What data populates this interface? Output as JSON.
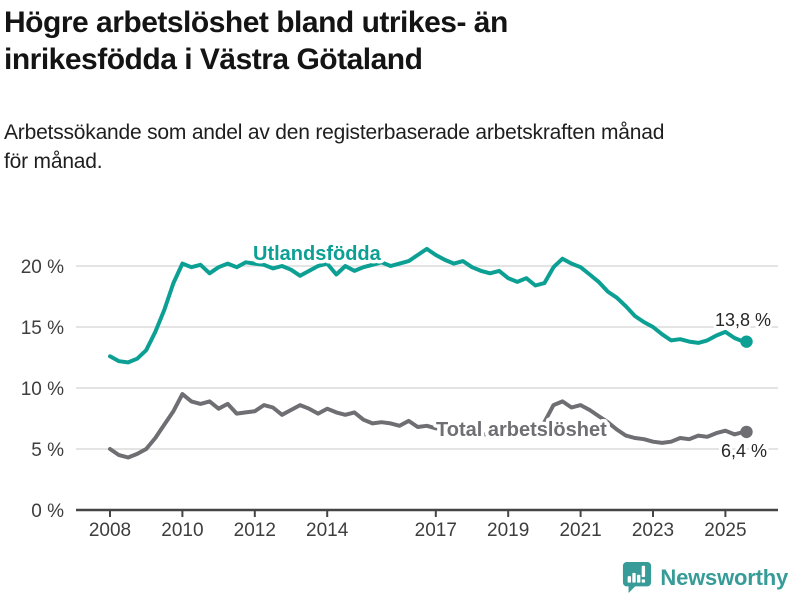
{
  "header": {
    "title": "Högre arbetslöshet bland utrikes- än\ninrikesfödda i Västra Götaland",
    "subtitle": "Arbetssökande som andel av den registerbaserade arbetskraften månad\nför månad."
  },
  "chart_data": {
    "type": "line",
    "title": "Högre arbetslöshet bland utrikes- än inrikesfödda i Västra Götaland",
    "subtitle": "Arbetssökande som andel av den registerbaserade arbetskraften månad för månad.",
    "unit": "%",
    "ylim": [
      0,
      22
    ],
    "grid": true,
    "legend_position": "inline-labels",
    "x": [
      2008,
      2008.25,
      2008.5,
      2008.75,
      2009,
      2009.25,
      2009.5,
      2009.75,
      2010,
      2010.25,
      2010.5,
      2010.75,
      2011,
      2011.25,
      2011.5,
      2011.75,
      2012,
      2012.25,
      2012.5,
      2012.75,
      2013,
      2013.25,
      2013.5,
      2013.75,
      2014,
      2014.25,
      2014.5,
      2014.75,
      2015,
      2015.25,
      2015.5,
      2015.75,
      2016,
      2016.25,
      2016.5,
      2016.75,
      2017,
      2017.25,
      2017.5,
      2017.75,
      2018,
      2018.25,
      2018.5,
      2018.75,
      2019,
      2019.25,
      2019.5,
      2019.75,
      2020,
      2020.25,
      2020.5,
      2020.75,
      2021,
      2021.25,
      2021.5,
      2021.75,
      2022,
      2022.25,
      2022.5,
      2022.75,
      2023,
      2023.25,
      2023.5,
      2023.75,
      2024,
      2024.25,
      2024.5,
      2024.75,
      2025,
      2025.25,
      2025.5
    ],
    "series": [
      {
        "name": "Utlandsfödda",
        "color": "#0CA094",
        "end_label": "13,8 %",
        "last_value": 13.8,
        "values": [
          12.6,
          12.2,
          12.1,
          12.4,
          13.1,
          14.6,
          16.4,
          18.6,
          20.2,
          19.9,
          20.1,
          19.4,
          19.9,
          20.2,
          19.9,
          20.3,
          20.2,
          20.1,
          19.8,
          20.0,
          19.7,
          19.2,
          19.6,
          20.0,
          20.2,
          19.3,
          20.0,
          19.6,
          19.9,
          20.1,
          20.3,
          20.0,
          20.2,
          20.4,
          20.9,
          21.4,
          20.9,
          20.5,
          20.2,
          20.4,
          19.9,
          19.6,
          19.4,
          19.6,
          19.0,
          18.7,
          19.0,
          18.4,
          18.6,
          19.9,
          20.6,
          20.2,
          19.9,
          19.3,
          18.7,
          17.9,
          17.4,
          16.7,
          15.9,
          15.4,
          15.0,
          14.4,
          13.9,
          14.0,
          13.8,
          13.7,
          13.9,
          14.3,
          14.6,
          14.1,
          13.8
        ]
      },
      {
        "name": "Total arbetslöshet",
        "color": "#6E6E73",
        "end_label": "6,4 %",
        "last_value": 6.4,
        "values": [
          5.0,
          4.5,
          4.3,
          4.6,
          5.0,
          5.9,
          7.0,
          8.1,
          9.5,
          8.9,
          8.7,
          8.9,
          8.3,
          8.7,
          7.9,
          8.0,
          8.1,
          8.6,
          8.4,
          7.8,
          8.2,
          8.6,
          8.3,
          7.9,
          8.3,
          8.0,
          7.8,
          8.0,
          7.4,
          7.1,
          7.2,
          7.1,
          6.9,
          7.3,
          6.8,
          6.9,
          6.7,
          6.6,
          6.5,
          6.4,
          6.3,
          6.2,
          6.2,
          6.1,
          6.2,
          6.3,
          6.4,
          6.6,
          7.2,
          8.6,
          8.9,
          8.4,
          8.6,
          8.2,
          7.7,
          7.2,
          6.6,
          6.1,
          5.9,
          5.8,
          5.6,
          5.5,
          5.6,
          5.9,
          5.8,
          6.1,
          6.0,
          6.3,
          6.5,
          6.2,
          6.4
        ]
      }
    ],
    "y_axis": {
      "ticks": [
        0,
        5,
        10,
        15,
        20
      ],
      "labels": [
        "0 %",
        "5 %",
        "10 %",
        "15 %",
        "20 %"
      ]
    },
    "x_axis": {
      "ticks": [
        2008,
        2010,
        2012,
        2014,
        2017,
        2019,
        2021,
        2023,
        2025
      ],
      "labels": [
        "2008",
        "2010",
        "2012",
        "2014",
        "2017",
        "2019",
        "2021",
        "2023",
        "2025"
      ]
    }
  },
  "footer": {
    "brand": "Newsworthy"
  },
  "colors": {
    "accent_teal": "#0CA094",
    "series_gray": "#6E6E73",
    "logo_teal": "#379B98",
    "grid": "#DBDBDB",
    "axis": "#454545",
    "text_dark": "#141414"
  }
}
